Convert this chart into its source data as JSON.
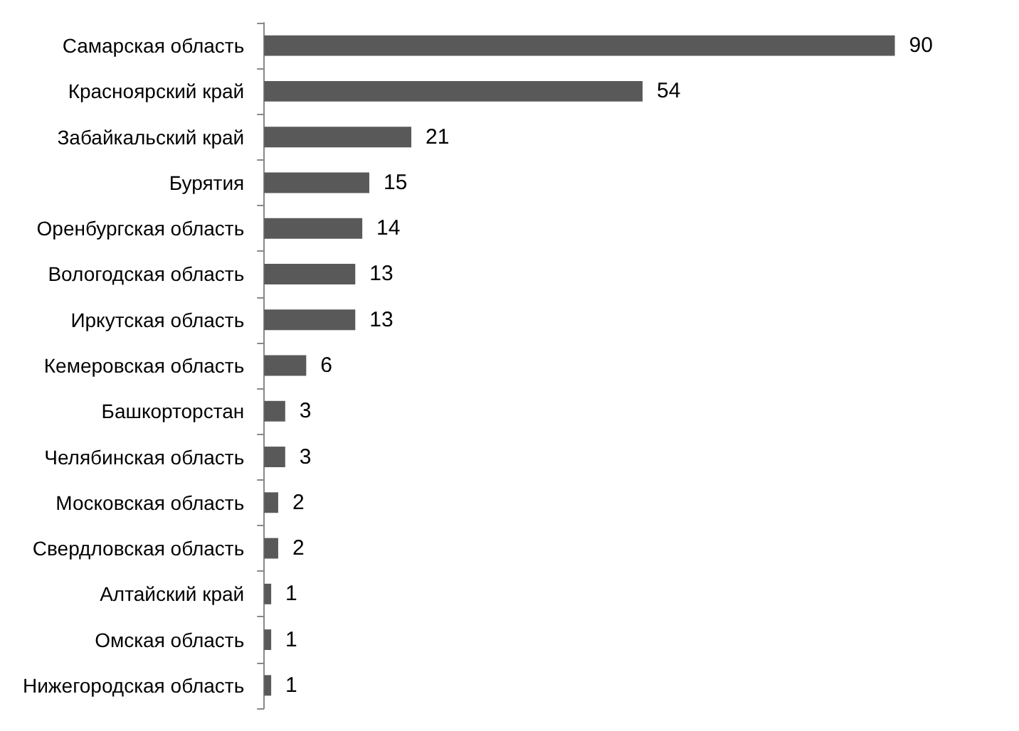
{
  "chart_data": {
    "type": "bar",
    "orientation": "horizontal",
    "categories": [
      "Самарская область",
      "Красноярский край",
      "Забайкальский край",
      "Бурятия",
      "Оренбургская область",
      "Вологодская область",
      "Иркутская область",
      "Кемеровская область",
      "Башкорторстан",
      "Челябинская область",
      "Московская область",
      "Свердловская область",
      "Алтайский край",
      "Омская область",
      "Нижегородская область"
    ],
    "values": [
      90,
      54,
      21,
      15,
      14,
      13,
      13,
      6,
      3,
      3,
      2,
      2,
      1,
      1,
      1
    ],
    "color": "#595959",
    "data_labels": true
  }
}
